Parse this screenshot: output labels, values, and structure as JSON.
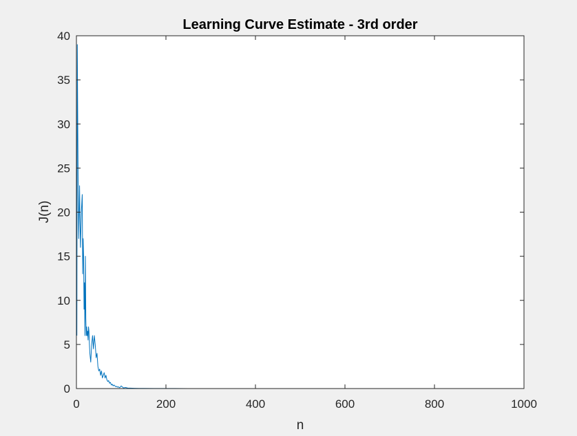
{
  "chart_data": {
    "type": "line",
    "title": "Learning Curve Estimate - 3rd order",
    "xlabel": "n",
    "ylabel": "J(n)",
    "xlim": [
      0,
      1000
    ],
    "ylim": [
      0,
      40
    ],
    "xticks": [
      0,
      200,
      400,
      600,
      800,
      1000
    ],
    "yticks": [
      0,
      5,
      10,
      15,
      20,
      25,
      30,
      35,
      40
    ],
    "grid": false,
    "line_color": "#0072BD",
    "series": [
      {
        "x": [
          1,
          2,
          3,
          4,
          5,
          6,
          7,
          8,
          9,
          10,
          11,
          12,
          13,
          14,
          15,
          16,
          17,
          18,
          19,
          20,
          21,
          22,
          23,
          24,
          25,
          26,
          27,
          28,
          29,
          30,
          32,
          34,
          36,
          38,
          40,
          42,
          44,
          46,
          48,
          50,
          52,
          54,
          56,
          58,
          60,
          62,
          64,
          66,
          68,
          70,
          72,
          74,
          76,
          78,
          80,
          82,
          84,
          86,
          88,
          90,
          92,
          94,
          96,
          98,
          100,
          105,
          110,
          115,
          120,
          130,
          140,
          150,
          175,
          200,
          250,
          300,
          400,
          500,
          600,
          700,
          800,
          900,
          1000
        ],
        "y": [
          6,
          39,
          30,
          22,
          17,
          20,
          23,
          19,
          16,
          18,
          20,
          21,
          22,
          13,
          17,
          15,
          9,
          12,
          6,
          15,
          8,
          6,
          7,
          6,
          6.5,
          5.5,
          7,
          6.5,
          5,
          4,
          3,
          5,
          6,
          4.5,
          6,
          5,
          3.5,
          4,
          2.5,
          2,
          2.2,
          1.5,
          2,
          1.2,
          1.5,
          1.8,
          1.2,
          1.5,
          1,
          0.8,
          0.9,
          0.6,
          0.7,
          0.4,
          0.5,
          0.3,
          0.4,
          0.3,
          0.2,
          0.25,
          0.15,
          0.2,
          0.1,
          0.15,
          0.3,
          0.08,
          0.12,
          0.05,
          0.05,
          0.03,
          0.02,
          0.02,
          0.01,
          0.01,
          0.005,
          0.005,
          0,
          0,
          0,
          0,
          0,
          0,
          0
        ]
      }
    ]
  }
}
